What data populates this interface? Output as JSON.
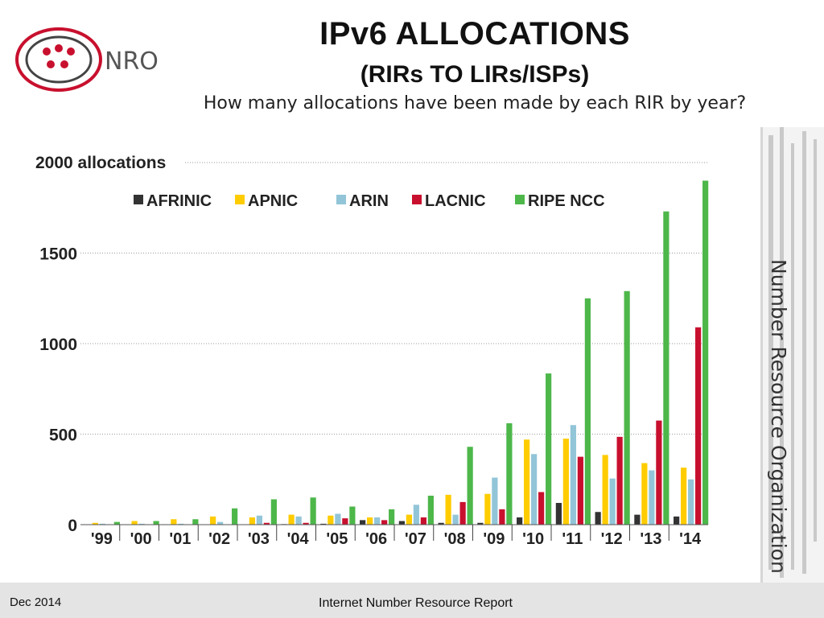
{
  "header": {
    "logo_text": "NRO",
    "title": "IPv6 ALLOCATIONS",
    "subtitle": "(RIRs TO LIRs/ISPs)",
    "question": "How many allocations have been made by each RIR by year?"
  },
  "side_label": "Number Resource Organization",
  "footer": {
    "date": "Dec 2014",
    "report": "Internet Number Resource Report"
  },
  "chart_data": {
    "type": "bar",
    "title": "",
    "xlabel": "",
    "ylabel": "2000 allocations",
    "ylim": [
      0,
      2000
    ],
    "yticks": [
      {
        "value": 0,
        "label": "0"
      },
      {
        "value": 500,
        "label": "500"
      },
      {
        "value": 1000,
        "label": "1000"
      },
      {
        "value": 1500,
        "label": "1500"
      }
    ],
    "grid": true,
    "legend_position": "top",
    "categories": [
      "'99",
      "'00",
      "'01",
      "'02",
      "'03",
      "'04",
      "'05",
      "'06",
      "'07",
      "'08",
      "'09",
      "'10",
      "'11",
      "'12",
      "'13",
      "'14"
    ],
    "series": [
      {
        "name": "AFRINIC",
        "color": "#333333",
        "values": [
          0,
          0,
          0,
          0,
          2,
          3,
          5,
          25,
          20,
          10,
          10,
          40,
          120,
          70,
          55,
          45
        ]
      },
      {
        "name": "APNIC",
        "color": "#ffcc00",
        "values": [
          10,
          20,
          30,
          45,
          40,
          55,
          50,
          40,
          55,
          165,
          170,
          470,
          475,
          385,
          340,
          315
        ]
      },
      {
        "name": "ARIN",
        "color": "#92c5d8",
        "values": [
          5,
          5,
          5,
          15,
          50,
          45,
          60,
          40,
          110,
          55,
          260,
          390,
          550,
          255,
          300,
          250
        ]
      },
      {
        "name": "LACNIC",
        "color": "#c8102e",
        "values": [
          0,
          0,
          0,
          0,
          10,
          10,
          35,
          25,
          40,
          125,
          85,
          180,
          375,
          485,
          575,
          1090
        ]
      },
      {
        "name": "RIPE NCC",
        "color": "#4db74a",
        "values": [
          15,
          20,
          30,
          90,
          140,
          150,
          100,
          85,
          160,
          430,
          560,
          835,
          1250,
          1290,
          1730,
          1900
        ]
      }
    ]
  }
}
